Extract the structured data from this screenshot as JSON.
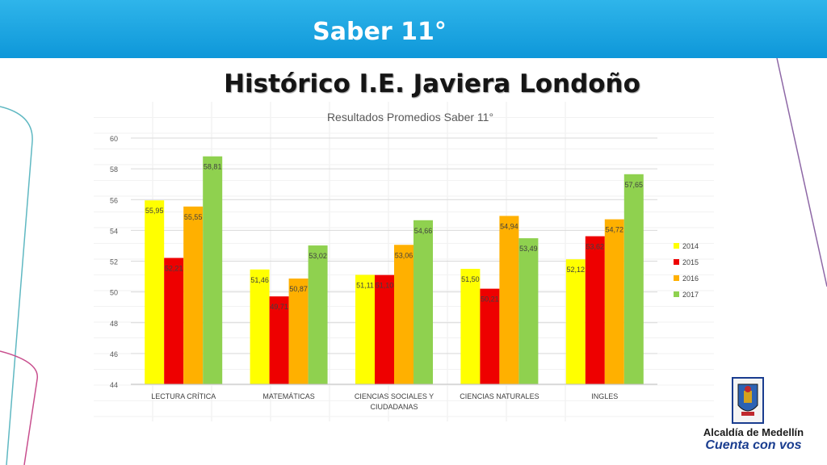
{
  "header": {
    "title": "Saber 11°"
  },
  "slide": {
    "subtitle": "Histórico I.E. Javiera Londoño"
  },
  "logo": {
    "line1": "Alcaldía de Medellín",
    "line2": "Cuenta con vos"
  },
  "colors": {
    "header": "#1aa6e4",
    "s2014": "#ffff00",
    "s2015": "#ee0000",
    "s2016": "#ffb000",
    "s2017": "#8fd14f"
  },
  "chart_data": {
    "type": "bar",
    "title": "Resultados Promedios Saber 11°",
    "categories": [
      "LECTURA CRÍTICA",
      "MATEMÁTICAS",
      "CIENCIAS SOCIALES Y CIUDADANAS",
      "CIENCIAS NATURALES",
      "INGLES"
    ],
    "category_lines": [
      [
        "LECTURA CRÍTICA"
      ],
      [
        "MATEMÁTICAS"
      ],
      [
        "CIENCIAS SOCIALES Y",
        "CIUDADANAS"
      ],
      [
        "CIENCIAS NATURALES"
      ],
      [
        "INGLES"
      ]
    ],
    "series": [
      {
        "name": "2014",
        "color": "#ffff00",
        "values": [
          55.95,
          51.46,
          51.11,
          51.5,
          52.12
        ],
        "labels": [
          "55,95",
          "51,46",
          "51,11",
          "51,50",
          "52,12"
        ]
      },
      {
        "name": "2015",
        "color": "#ee0000",
        "values": [
          52.21,
          49.71,
          51.1,
          50.21,
          53.62
        ],
        "labels": [
          "52,21",
          "49,71",
          "51,10",
          "50,21",
          "53,62"
        ]
      },
      {
        "name": "2016",
        "color": "#ffb000",
        "values": [
          55.55,
          50.87,
          53.06,
          54.94,
          54.72
        ],
        "labels": [
          "55,55",
          "50,87",
          "53,06",
          "54,94",
          "54,72"
        ]
      },
      {
        "name": "2017",
        "color": "#8fd14f",
        "values": [
          58.81,
          53.02,
          54.66,
          53.49,
          57.65
        ],
        "labels": [
          "58,81",
          "53,02",
          "54,66",
          "53,49",
          "57,65"
        ]
      }
    ],
    "yticks": [
      "44",
      "46",
      "48",
      "50",
      "52",
      "54",
      "56",
      "58",
      "60"
    ],
    "ylim": [
      44,
      60
    ],
    "grid": true,
    "legend": "right"
  }
}
